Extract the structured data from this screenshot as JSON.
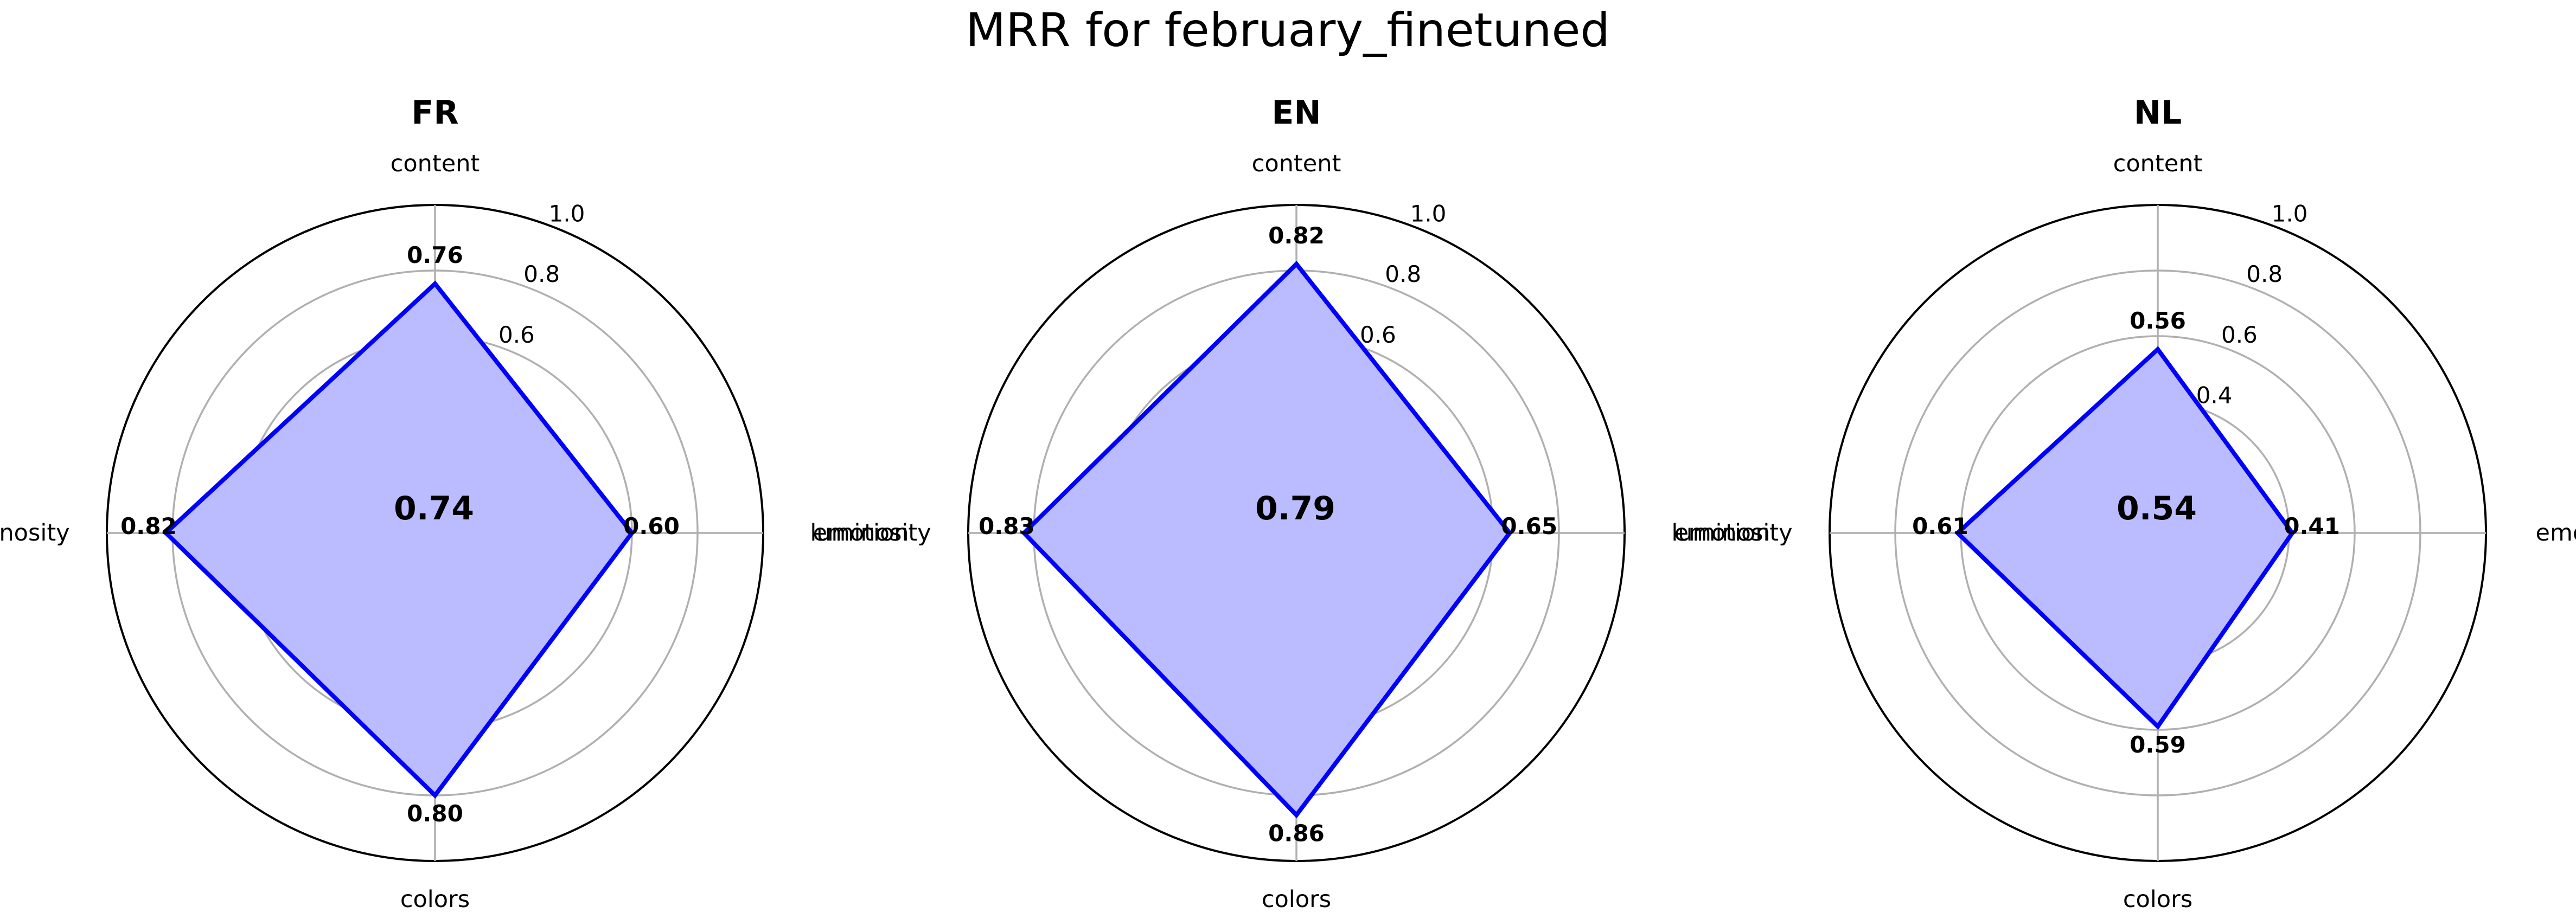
{
  "figure": {
    "title": "MRR for february_finetuned"
  },
  "style": {
    "line_color": "#0000ff",
    "fill_color": "#bbbbff",
    "grid_color": "#b0b0b0",
    "spine_color": "#000000",
    "text_color": "#000000"
  },
  "chart_data": [
    {
      "type": "radar",
      "title": "FR",
      "axes": [
        "content",
        "emotion",
        "colors",
        "luminosity"
      ],
      "values": [
        0.76,
        0.6,
        0.8,
        0.82
      ],
      "value_labels": [
        "0.76",
        "0.60",
        "0.80",
        "0.82"
      ],
      "center_label": "0.74",
      "rlim": [
        0,
        1.0
      ],
      "rticks": [
        "0.2",
        "0.4",
        "0.6",
        "0.8",
        "1.0"
      ],
      "grid": true
    },
    {
      "type": "radar",
      "title": "EN",
      "axes": [
        "content",
        "emotion",
        "colors",
        "luminosity"
      ],
      "values": [
        0.82,
        0.65,
        0.86,
        0.83
      ],
      "value_labels": [
        "0.82",
        "0.65",
        "0.86",
        "0.83"
      ],
      "center_label": "0.79",
      "rlim": [
        0,
        1.0
      ],
      "rticks": [
        "0.2",
        "0.4",
        "0.6",
        "0.8",
        "1.0"
      ],
      "grid": true
    },
    {
      "type": "radar",
      "title": "NL",
      "axes": [
        "content",
        "emotion",
        "colors",
        "luminosity"
      ],
      "values": [
        0.56,
        0.41,
        0.59,
        0.61
      ],
      "value_labels": [
        "0.56",
        "0.41",
        "0.59",
        "0.61"
      ],
      "center_label": "0.54",
      "rlim": [
        0,
        1.0
      ],
      "rticks": [
        "0.2",
        "0.4",
        "0.6",
        "0.8",
        "1.0"
      ],
      "grid": true
    }
  ]
}
